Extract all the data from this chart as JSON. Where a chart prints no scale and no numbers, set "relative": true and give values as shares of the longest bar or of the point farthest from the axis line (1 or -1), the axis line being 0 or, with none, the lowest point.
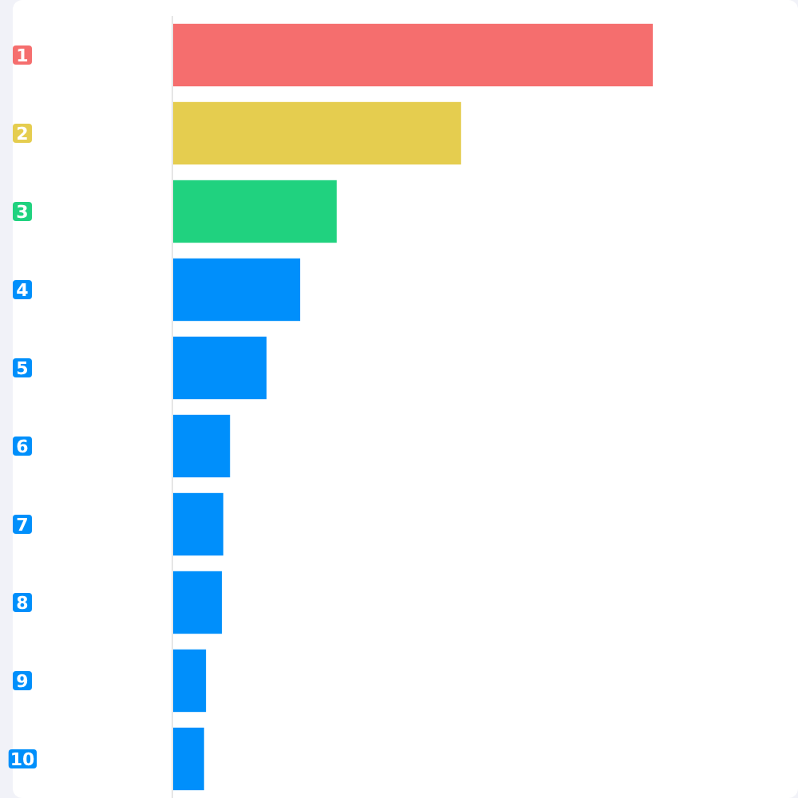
{
  "chart_data": {
    "type": "bar",
    "orientation": "horizontal",
    "relative": true,
    "categories": [
      "1",
      "2",
      "3",
      "4",
      "5",
      "6",
      "7",
      "8",
      "9",
      "10"
    ],
    "values": [
      1,
      0.601,
      0.342,
      0.266,
      0.196,
      0.12,
      0.106,
      0.103,
      0.07,
      0.066
    ],
    "colors": [
      "#f56e6e",
      "#e5cd4f",
      "#20d27f",
      "#008ffb",
      "#008ffb",
      "#008ffb",
      "#008ffb",
      "#008ffb",
      "#008ffb",
      "#008ffb"
    ]
  }
}
